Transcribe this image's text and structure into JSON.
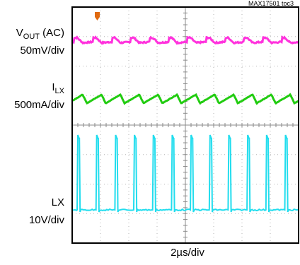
{
  "figure_id": "MAX17501 toc3",
  "channels": [
    {
      "name": "V",
      "name_sub": "OUT",
      "name_suffix": " (AC)",
      "scale": "50mV/div",
      "color": "#ff33dd"
    },
    {
      "name": "I",
      "name_sub": "LX",
      "name_suffix": "",
      "scale": "500mA/div",
      "color": "#22cc11"
    },
    {
      "name": "",
      "name_sub": "",
      "name_suffix": "LX",
      "scale": "10V/div",
      "color": "#22ddee"
    }
  ],
  "chart_data": {
    "type": "line",
    "title": "",
    "xlabel": "2µs/div",
    "ylabel": "",
    "grid": true,
    "trigger_marker_color": "#e06a10",
    "series": [
      {
        "name": "VOUT (AC)",
        "divisions": [
          1.0,
          1.1,
          1.5,
          1.25,
          1.05,
          1.0
        ],
        "period_div": 0.667,
        "waveform": "ripple"
      },
      {
        "name": "ILX",
        "divisions": [
          1.0,
          1.65,
          1.0
        ],
        "period_div": 0.667,
        "waveform": "triangle"
      },
      {
        "name": "LX",
        "divisions": [
          0.0,
          4.0
        ],
        "period_div": 0.667,
        "duty": 0.12,
        "waveform": "pulse"
      }
    ]
  }
}
